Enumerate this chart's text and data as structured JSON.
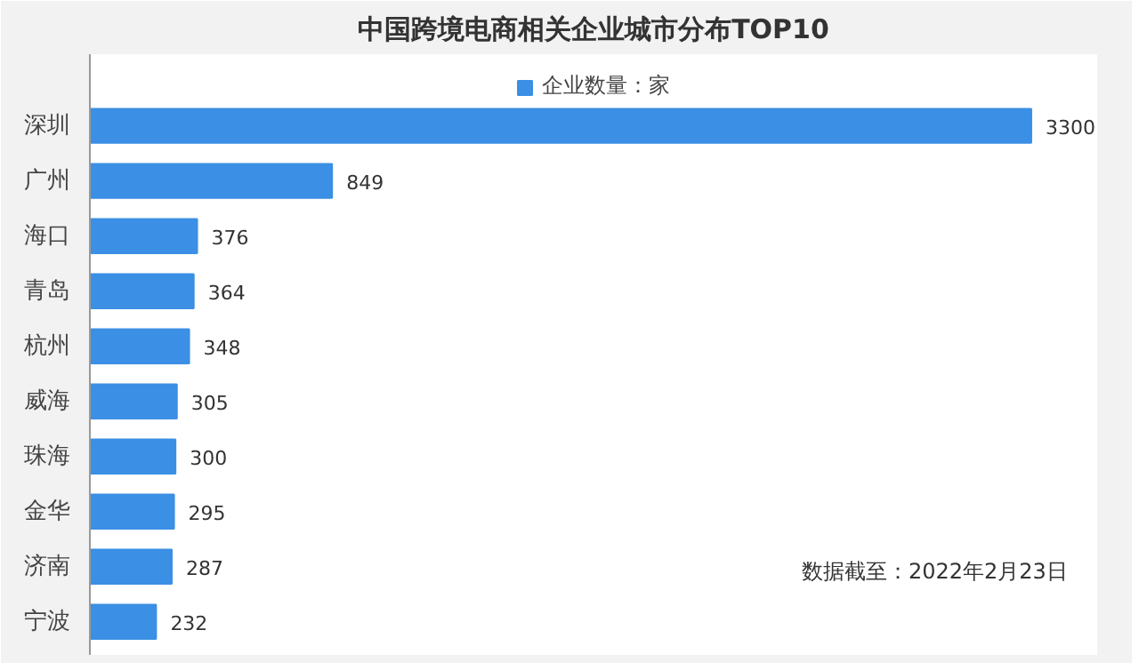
{
  "chart_data": {
    "type": "bar",
    "orientation": "horizontal",
    "title": "中国跨境电商相关企业城市分布TOP10",
    "categories": [
      "深圳",
      "广州",
      "海口",
      "青岛",
      "杭州",
      "威海",
      "珠海",
      "金华",
      "济南",
      "宁波"
    ],
    "series": [
      {
        "name": "企业数量：家",
        "color": "#3b8fe4",
        "values": [
          3300,
          849,
          376,
          364,
          348,
          305,
          300,
          295,
          287,
          232
        ]
      }
    ],
    "data_labels": true,
    "legend": "top",
    "grid": false,
    "annotations": [
      "数据截至：2022年2月23日"
    ]
  }
}
